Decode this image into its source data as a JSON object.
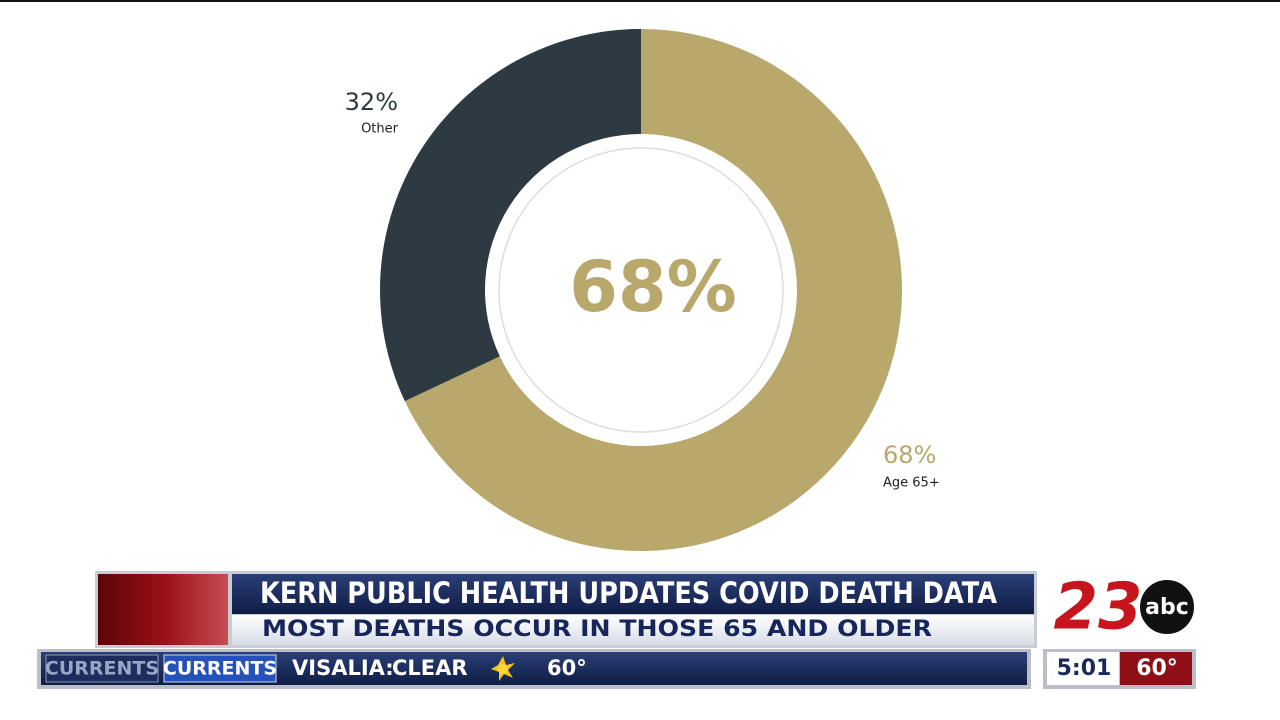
{
  "chart_data": {
    "type": "donut",
    "categories": [
      "Age 65+",
      "Other"
    ],
    "values": [
      68,
      32
    ],
    "value_labels": [
      "68%",
      "32%"
    ],
    "colors": [
      "#b8a86b",
      "#2e3a42"
    ]
  },
  "lower_third": {
    "headline": "KERN PUBLIC HEALTH UPDATES COVID DEATH DATA",
    "subhead": "MOST DEATHS OCCUR IN THOSE 65 AND OLDER",
    "ticker": {
      "tabs": [
        "CURRENTS",
        "CURRENTS"
      ],
      "city": "VISALIA:",
      "condition": "CLEAR",
      "temperature": "60°"
    },
    "clock": {
      "time": "5:01",
      "temperature": "60°"
    },
    "logo": {
      "number": "23",
      "network": "abc"
    }
  }
}
